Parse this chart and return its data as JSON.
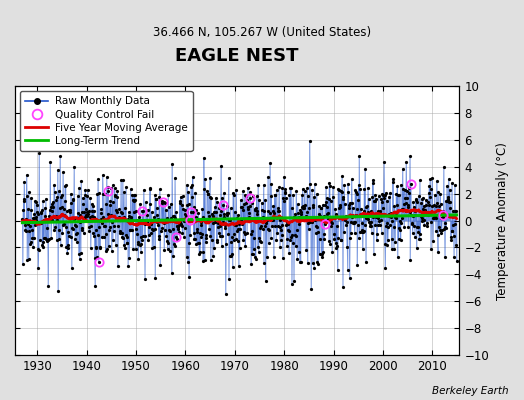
{
  "title": "EAGLE NEST",
  "subtitle": "36.466 N, 105.267 W (United States)",
  "ylabel": "Temperature Anomaly (°C)",
  "attribution": "Berkeley Earth",
  "xlim": [
    1925.5,
    2015.5
  ],
  "ylim": [
    -10,
    10
  ],
  "yticks": [
    -10,
    -8,
    -6,
    -4,
    -2,
    0,
    2,
    4,
    6,
    8,
    10
  ],
  "xticks": [
    1930,
    1940,
    1950,
    1960,
    1970,
    1980,
    1990,
    2000,
    2010
  ],
  "start_year": 1927,
  "end_year": 2015,
  "plot_bg_color": "#ffffff",
  "fig_bg_color": "#e0e0e0",
  "raw_line_color": "#2255cc",
  "raw_dot_color": "#000000",
  "qc_fail_color": "#ff44ff",
  "moving_avg_color": "#dd0000",
  "trend_color": "#00bb00",
  "seed": 17,
  "noise_std": 1.6,
  "n_qc": 12
}
